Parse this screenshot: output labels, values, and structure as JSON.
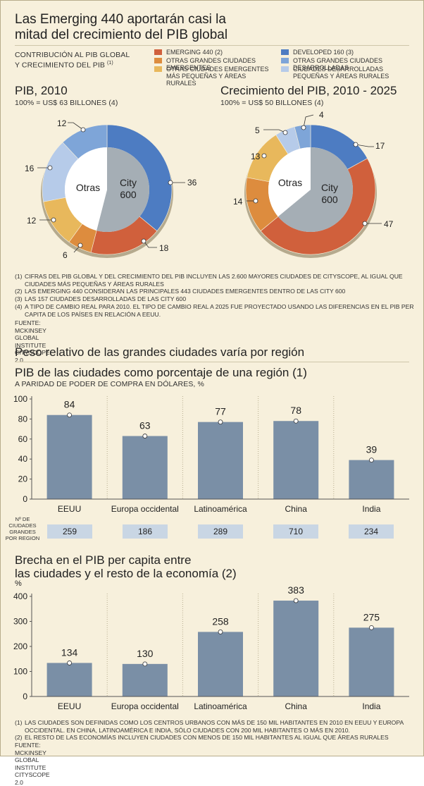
{
  "header": {
    "title_line1": "Las Emerging 440 aportarán casi la",
    "title_line2": "mitad del crecimiento del PIB global",
    "subtitle_line1": "CONTRIBUCIÓN AL PIB GLOBAL",
    "subtitle_line2": "Y CRECIMIENTO DEL PIB",
    "subtitle_note": "(1)"
  },
  "legend": {
    "items": [
      {
        "label": "EMERGING 440 (2)",
        "color": "#d0603c"
      },
      {
        "label": "DEVELOPED 160 (3)",
        "color": "#4d7cc2"
      },
      {
        "label": "OTRAS GRANDES CIUDADES EMERGENTES",
        "color": "#dd8c3e"
      },
      {
        "label": "OTRAS GRANDES CIUDADES DESARROLLADAS",
        "color": "#7ea5d8"
      },
      {
        "label": "OTRAS CIUDADES EMERGENTES MÁS PEQUEÑAS Y ÁREAS RURALES",
        "color": "#e8b85c"
      },
      {
        "label": "CIUDADES DESARROLLADAS PEQUEÑAS Y ÁREAS RURALES",
        "color": "#b6cbe9"
      }
    ]
  },
  "chart_data": [
    {
      "type": "pie",
      "title": "PIB, 2010",
      "subtitle": "100% = US$ 63 BILLONES (4)",
      "inner": [
        {
          "label": "City 600",
          "value": 54,
          "color": "#a5aeb5"
        },
        {
          "label": "Otras",
          "value": 46,
          "color": "#ffffff"
        }
      ],
      "outer": [
        {
          "name": "Developed 160",
          "value": 36,
          "color": "#4d7cc2"
        },
        {
          "name": "Emerging 440",
          "value": 18,
          "color": "#d0603c"
        },
        {
          "name": "Otras grandes ciudades emergentes",
          "value": 6,
          "color": "#dd8c3e"
        },
        {
          "name": "Otras ciudades emergentes más pequeñas y áreas rurales",
          "value": 12,
          "color": "#e8b85c"
        },
        {
          "name": "Ciudades desarrolladas pequeñas y áreas rurales",
          "value": 16,
          "color": "#b6cbe9"
        },
        {
          "name": "Otras grandes ciudades desarrolladas",
          "value": 12,
          "color": "#7ea5d8"
        }
      ]
    },
    {
      "type": "pie",
      "title": "Crecimiento del PIB, 2010 - 2025",
      "subtitle": "100% = US$ 50 BILLONES (4)",
      "inner": [
        {
          "label": "City 600",
          "value": 64,
          "color": "#a5aeb5"
        },
        {
          "label": "Otras",
          "value": 36,
          "color": "#ffffff"
        }
      ],
      "outer": [
        {
          "name": "Developed 160",
          "value": 17,
          "color": "#4d7cc2"
        },
        {
          "name": "Emerging 440",
          "value": 47,
          "color": "#d0603c"
        },
        {
          "name": "Otras grandes ciudades emergentes",
          "value": 14,
          "color": "#dd8c3e"
        },
        {
          "name": "Otras ciudades emergentes más pequeñas y áreas rurales",
          "value": 13,
          "color": "#e8b85c"
        },
        {
          "name": "Ciudades desarrolladas pequeñas y áreas rurales",
          "value": 5,
          "color": "#b6cbe9"
        },
        {
          "name": "Otras grandes ciudades desarrolladas",
          "value": 4,
          "color": "#7ea5d8"
        }
      ]
    },
    {
      "type": "bar",
      "title": "PIB de las ciudades como porcentaje de una región (1)",
      "subtitle": "A PARIDAD DE PODER DE COMPRA EN DÓLARES, %",
      "categories": [
        "EEUU",
        "Europa occidental",
        "Latinoamérica",
        "China",
        "India"
      ],
      "values": [
        84,
        63,
        77,
        78,
        39
      ],
      "ylim": [
        0,
        100
      ],
      "yticks": [
        0,
        20,
        40,
        60,
        80,
        100
      ],
      "bar_color": "#7a8fa6"
    },
    {
      "type": "bar",
      "title": "Brecha en el PIB per capita entre las ciudades y el resto de la economía (2)",
      "ylabel": "%",
      "categories": [
        "EEUU",
        "Europa occidental",
        "Latinoamérica",
        "China",
        "India"
      ],
      "values": [
        134,
        130,
        258,
        383,
        275
      ],
      "ylim": [
        0,
        400
      ],
      "yticks": [
        0,
        100,
        200,
        300,
        400
      ],
      "bar_color": "#7a8fa6"
    }
  ],
  "pies": {
    "p1_title": "PIB, 2010",
    "p1_sub": "100% = US$ 63 BILLONES (4)",
    "p2_title": "Crecimiento del PIB, 2010 - 2025",
    "p2_sub": "100% = US$ 50 BILLONES (4)",
    "center_otras": "Otras",
    "center_city_1": "City",
    "center_city_2": "600"
  },
  "footnotes1": [
    {
      "n": "(1)",
      "t": "CIFRAS DEL PIB GLOBAL Y DEL CRECIMIENTO DEL PIB INCLUYEN LAS 2.600 MAYORES CIUDADES DE CITYSCOPE, AL IGUAL QUE CIUDADES MÁS PEQUEÑAS Y ÁREAS RURALES"
    },
    {
      "n": "(2)",
      "t": "LAS EMERGING 440 CONSIDERAN LAS PRINCIPALES 443 CIUDADES EMERGENTES DENTRO DE LAS CITY 600"
    },
    {
      "n": "(3)",
      "t": "LAS 157 CIUDADES DESARROLLADAS DE LAS CITY 600"
    },
    {
      "n": "(4)",
      "t": "A TIPO DE CAMBIO REAL PARA 2010. EL TIPO DE CAMBIO REAL A 2025 FUE PROYECTADO USANDO LAS DIFERENCIAS EN EL PIB PER CAPITA DE LOS PAÍSES EN RELACIÓN A EEUU."
    }
  ],
  "source1": "FUENTE: MCKINSEY GLOBAL INSTITUTE CITYSCOPE 2.0",
  "section2": {
    "heading": "Peso relativo de las grandes ciudades varía por región",
    "chart1_title": "PIB de las ciudades como porcentaje de una región (1)",
    "chart1_sub": "A PARIDAD DE PODER DE COMPRA EN DÓLARES, %",
    "counts_label": "Nº DE CIUDADES GRANDES POR REGION",
    "counts": [
      "259",
      "186",
      "289",
      "710",
      "234"
    ],
    "chart2_title_line1": "Brecha en el PIB per capita entre",
    "chart2_title_line2": "las ciudades y el resto de la economía (2)",
    "chart2_ylabel": "%"
  },
  "footnotes2": [
    {
      "n": "(1)",
      "t": "LAS CIUDADES SON DEFINIDAS COMO LOS CENTROS URBANOS CON MÁS DE 150 MIL HABITANTES EN 2010 EN EEUU Y EUROPA OCCIDENTAL. EN CHINA, LATINOAMÉRICA E INDIA, SÓLO CIUDADES CON 200 MIL HABITANTES O MÁS EN 2010."
    },
    {
      "n": "(2)",
      "t": "EL RESTO DE LAS ECONOMÍAS INCLUYEN CIUDADES CON MENOS DE 150 MIL HABITANTES AL IGUAL QUE ÁREAS RURALES"
    }
  ],
  "source2": "FUENTE: MCKINSEY GLOBAL INSTITUTE CITYSCOPE 2.0"
}
